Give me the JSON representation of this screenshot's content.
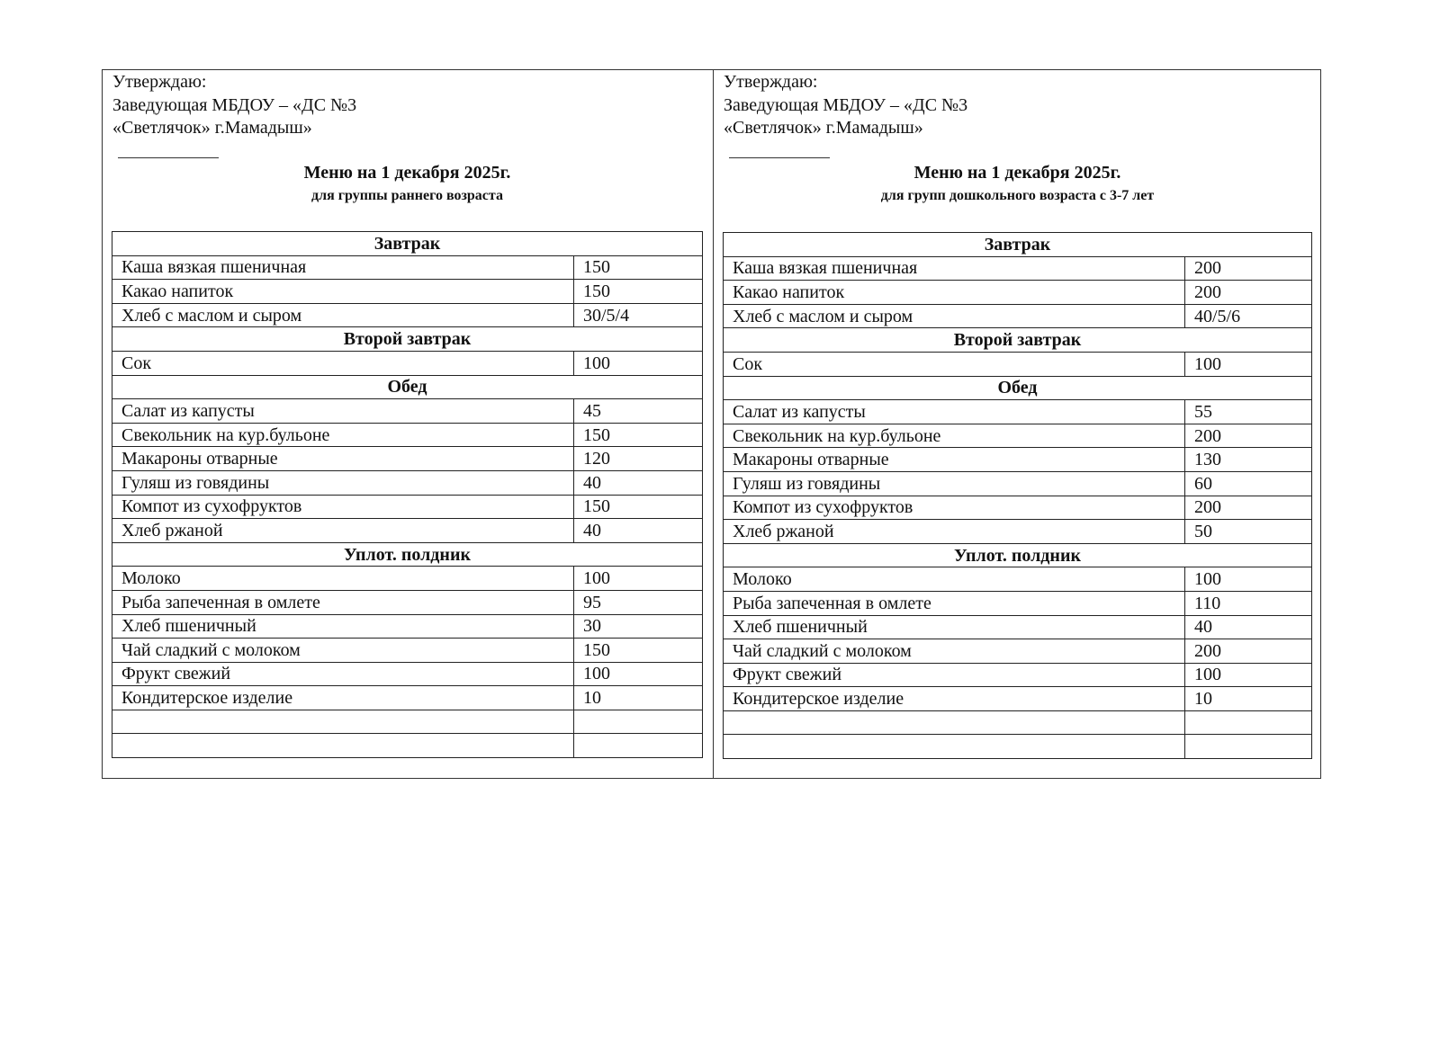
{
  "panels": [
    {
      "approval": [
        "Утверждаю:",
        "Заведующая МБДОУ – «ДС №3",
        "«Светлячок» г.Мамадыш»"
      ],
      "title": "Меню на 1 декабря 2025г.",
      "subtitle": "для группы раннего возраста",
      "sections": [
        {
          "name": "Завтрак",
          "items": [
            {
              "dish": "Каша вязкая пшеничная",
              "portion": "150"
            },
            {
              "dish": "Какао напиток",
              "portion": "150"
            },
            {
              "dish": "Хлеб с маслом и сыром",
              "portion": "30/5/4"
            }
          ]
        },
        {
          "name": "Второй завтрак",
          "items": [
            {
              "dish": "Сок",
              "portion": "100"
            }
          ]
        },
        {
          "name": "Обед",
          "items": [
            {
              "dish": "Салат из капусты",
              "portion": "45"
            },
            {
              "dish": "Свекольник на кур.бульоне",
              "portion": "150"
            },
            {
              "dish": "Макароны отварные",
              "portion": "120"
            },
            {
              "dish": "Гуляш из говядины",
              "portion": "40"
            },
            {
              "dish": "Компот из сухофруктов",
              "portion": "150"
            },
            {
              "dish": "Хлеб ржаной",
              "portion": "40"
            }
          ]
        },
        {
          "name": "Уплот. полдник",
          "items": [
            {
              "dish": "Молоко",
              "portion": "100"
            },
            {
              "dish": "Рыба запеченная в омлете",
              "portion": "95"
            },
            {
              "dish": "Хлеб пшеничный",
              "portion": "30"
            },
            {
              "dish": "Чай сладкий с молоком",
              "portion": "150"
            },
            {
              "dish": "Фрукт свежий",
              "portion": "100"
            },
            {
              "dish": "Кондитерское изделие",
              "portion": "10"
            }
          ]
        }
      ]
    },
    {
      "approval": [
        "Утверждаю:",
        "Заведующая МБДОУ – «ДС №3",
        "«Светлячок» г.Мамадыш»"
      ],
      "title": "Меню на 1 декабря 2025г.",
      "subtitle": "для групп дошкольного возраста с 3-7 лет",
      "sections": [
        {
          "name": "Завтрак",
          "items": [
            {
              "dish": "Каша вязкая пшеничная",
              "portion": "200"
            },
            {
              "dish": "Какао напиток",
              "portion": "200"
            },
            {
              "dish": "Хлеб с маслом и сыром",
              "portion": "40/5/6"
            }
          ]
        },
        {
          "name": "Второй завтрак",
          "items": [
            {
              "dish": "Сок",
              "portion": "100"
            }
          ]
        },
        {
          "name": "Обед",
          "items": [
            {
              "dish": "Салат из капусты",
              "portion": "55"
            },
            {
              "dish": "Свекольник на кур.бульоне",
              "portion": "200"
            },
            {
              "dish": "Макароны отварные",
              "portion": "130"
            },
            {
              "dish": "Гуляш из говядины",
              "portion": "60"
            },
            {
              "dish": "Компот из сухофруктов",
              "portion": "200"
            },
            {
              "dish": "Хлеб ржаной",
              "portion": "50"
            }
          ]
        },
        {
          "name": "Уплот. полдник",
          "items": [
            {
              "dish": "Молоко",
              "portion": "100"
            },
            {
              "dish": "Рыба запеченная в омлете",
              "portion": "110"
            },
            {
              "dish": "Хлеб пшеничный",
              "portion": "40"
            },
            {
              "dish": "Чай сладкий с молоком",
              "portion": "200"
            },
            {
              "dish": "Фрукт свежий",
              "portion": "100"
            },
            {
              "dish": "Кондитерское изделие",
              "portion": "10"
            }
          ]
        }
      ]
    }
  ]
}
